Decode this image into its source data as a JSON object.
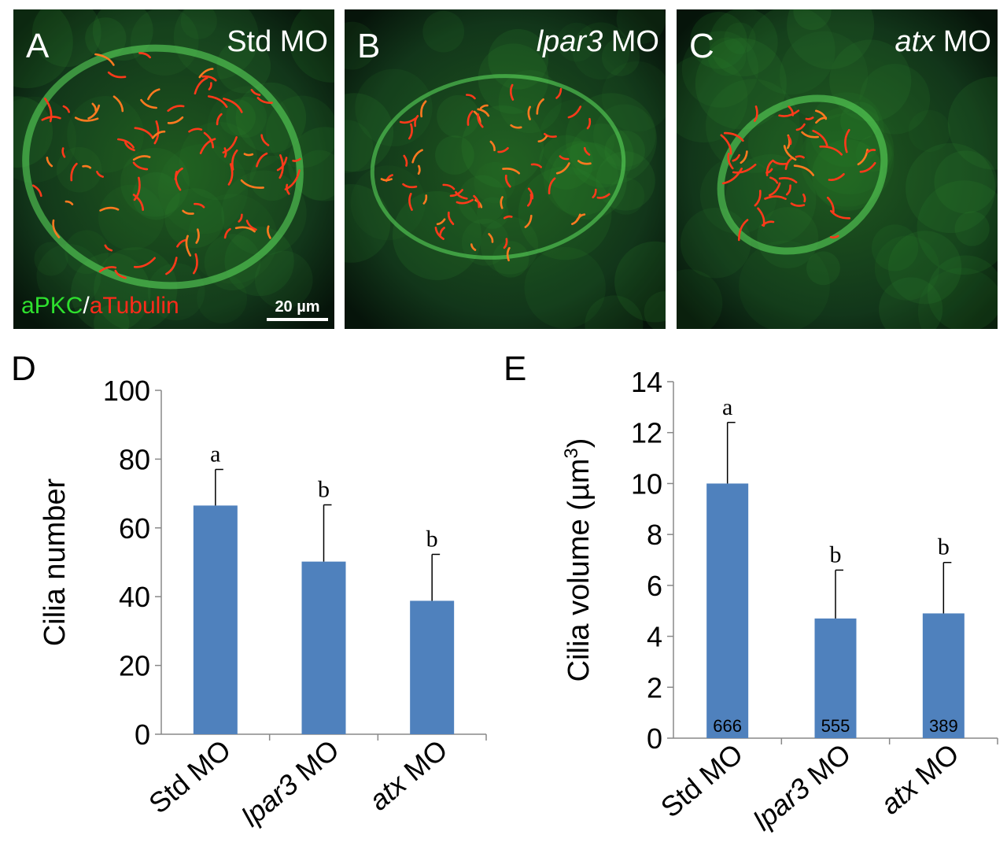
{
  "panels": [
    {
      "label": "A",
      "title": "Std MO",
      "title_parts": [
        "",
        "Std MO"
      ]
    },
    {
      "label": "B",
      "title": "lpar3 MO",
      "title_parts": [
        "lpar3",
        " MO"
      ]
    },
    {
      "label": "C",
      "title": "atx MO",
      "title_parts": [
        "atx",
        " MO"
      ]
    }
  ],
  "stain_legend": {
    "green": "aPKC",
    "separator": "/",
    "red": "aTubulin",
    "green_color": "#2ee02e",
    "red_color": "#ff2a1a"
  },
  "scale_bar": "20 µm",
  "chart_data": [
    {
      "panel_label": "D",
      "type": "bar",
      "categories": [
        "Std MO",
        "lpar3 MO",
        "atx MO"
      ],
      "category_parts": [
        [
          "Std",
          " MO",
          false
        ],
        [
          "lpar3",
          " MO",
          true
        ],
        [
          "atx",
          " MO",
          true
        ]
      ],
      "values": [
        66.5,
        50.2,
        38.8
      ],
      "errors": [
        10.5,
        16.5,
        13.5
      ],
      "significance": [
        "a",
        "b",
        "b"
      ],
      "ylabel": "Cilia number",
      "ylim": [
        0,
        100
      ],
      "yticks": [
        0,
        20,
        40,
        60,
        80,
        100
      ],
      "bar_color": "#4f81bd"
    },
    {
      "panel_label": "E",
      "type": "bar",
      "categories": [
        "Std MO",
        "lpar3 MO",
        "atx MO"
      ],
      "category_parts": [
        [
          "Std",
          " MO",
          false
        ],
        [
          "lpar3",
          " MO",
          true
        ],
        [
          "atx",
          " MO",
          true
        ]
      ],
      "values": [
        10.0,
        4.7,
        4.9
      ],
      "errors": [
        2.4,
        1.9,
        2.0
      ],
      "significance": [
        "a",
        "b",
        "b"
      ],
      "bar_labels": [
        "666",
        "555",
        "389"
      ],
      "ylabel": "Cilia volume (µm3)",
      "ylabel_parts": [
        "Cilia volume (µm",
        "3",
        ")"
      ],
      "ylim": [
        0,
        14
      ],
      "yticks": [
        0,
        2,
        4,
        6,
        8,
        10,
        12,
        14
      ],
      "bar_color": "#4f81bd"
    }
  ]
}
